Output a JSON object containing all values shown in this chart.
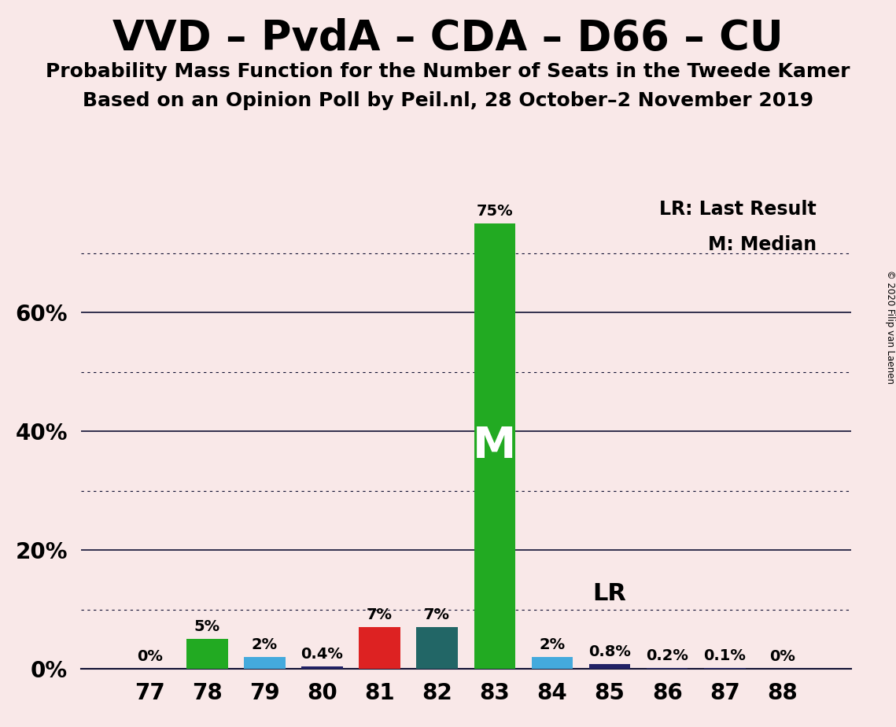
{
  "title": "VVD – PvdA – CDA – D66 – CU",
  "subtitle1": "Probability Mass Function for the Number of Seats in the Tweede Kamer",
  "subtitle2": "Based on an Opinion Poll by Peil.nl, 28 October–2 November 2019",
  "copyright": "© 2020 Filip van Laenen",
  "seats": [
    77,
    78,
    79,
    80,
    81,
    82,
    83,
    84,
    85,
    86,
    87,
    88
  ],
  "values": [
    0.001,
    5.0,
    2.0,
    0.4,
    7.0,
    7.0,
    75.0,
    2.0,
    0.8,
    0.2,
    0.1,
    0.001
  ],
  "labels": [
    "0%",
    "5%",
    "2%",
    "0.4%",
    "7%",
    "7%",
    "75%",
    "2%",
    "0.8%",
    "0.2%",
    "0.1%",
    "0%"
  ],
  "colors": [
    "#22aa22",
    "#22aa22",
    "#44aadd",
    "#222266",
    "#dd2222",
    "#226666",
    "#22aa22",
    "#44aadd",
    "#222266",
    "#222266",
    "#222266",
    "#222266"
  ],
  "median_seat": 83,
  "lr_seat": 85,
  "background_color": "#f9e8e8",
  "solid_yticks": [
    0,
    20,
    40,
    60
  ],
  "dotted_yticks": [
    10,
    30,
    50,
    70
  ],
  "ylim": [
    0,
    82
  ],
  "bar_width": 0.72,
  "title_fontsize": 38,
  "subtitle_fontsize": 18,
  "ytick_labels": [
    "0%",
    "20%",
    "40%",
    "60%"
  ],
  "ytick_positions": [
    0,
    20,
    40,
    60
  ]
}
